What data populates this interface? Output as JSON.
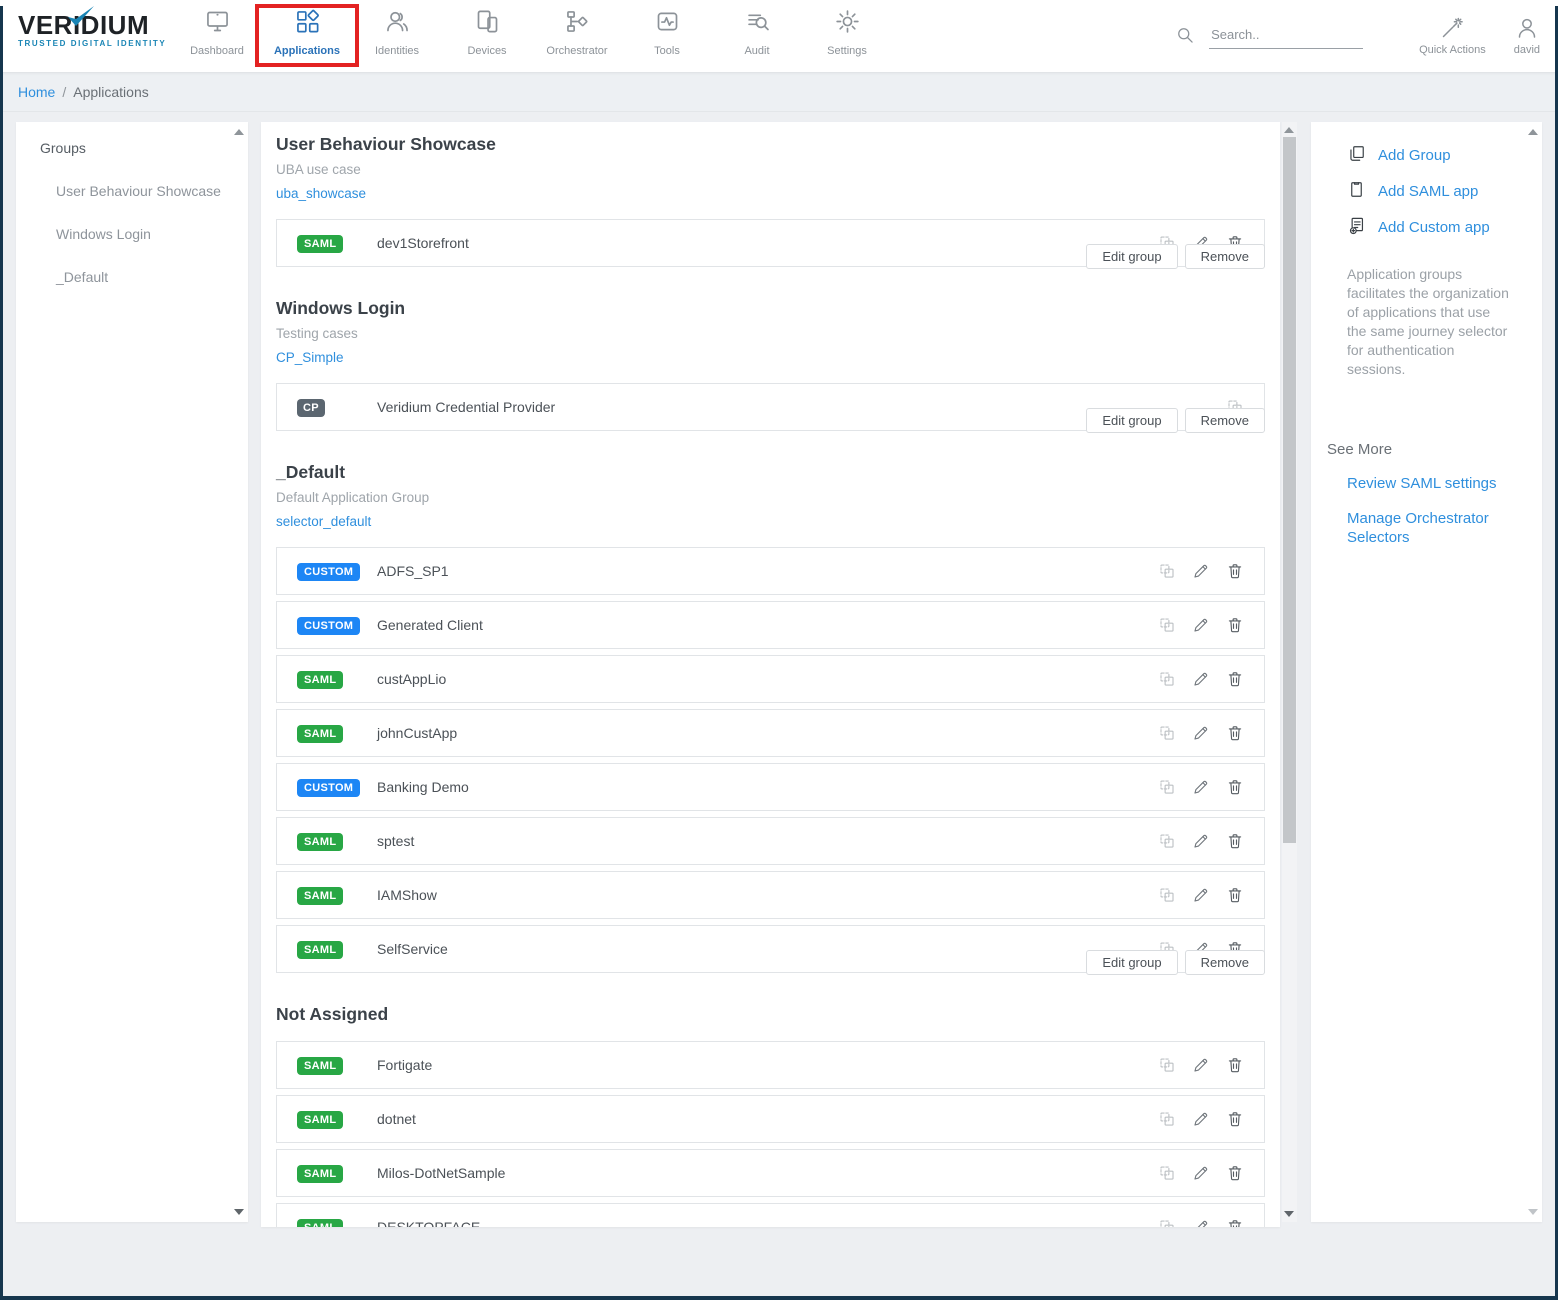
{
  "brand": {
    "name": "VERIDIUM",
    "tagline": "TRUSTED DIGITAL IDENTITY"
  },
  "nav": {
    "active": "Applications",
    "items": [
      {
        "label": "Dashboard",
        "icon": "dashboard-icon"
      },
      {
        "label": "Applications",
        "icon": "applications-icon"
      },
      {
        "label": "Identities",
        "icon": "identities-icon"
      },
      {
        "label": "Devices",
        "icon": "devices-icon"
      },
      {
        "label": "Orchestrator",
        "icon": "orchestrator-icon"
      },
      {
        "label": "Tools",
        "icon": "tools-icon"
      },
      {
        "label": "Audit",
        "icon": "audit-icon"
      },
      {
        "label": "Settings",
        "icon": "settings-icon"
      }
    ]
  },
  "topbar": {
    "search_placeholder": "Search..",
    "quick_actions_label": "Quick Actions",
    "user_label": "david"
  },
  "breadcrumb": {
    "home": "Home",
    "separator": "/",
    "current": "Applications"
  },
  "sidebar": {
    "header": "Groups",
    "items": [
      "User Behaviour Showcase",
      "Windows Login",
      "_Default"
    ]
  },
  "group_buttons": {
    "edit": "Edit group",
    "remove": "Remove"
  },
  "groups": [
    {
      "title": "User Behaviour Showcase",
      "subtitle": "UBA use case",
      "selector": "uba_showcase",
      "apps": [
        {
          "badge": "SAML",
          "type": "saml",
          "name": "dev1Storefront",
          "actions": [
            "clone-icon",
            "edit-icon",
            "delete-icon"
          ]
        }
      ]
    },
    {
      "title": "Windows Login",
      "subtitle": "Testing cases",
      "selector": "CP_Simple",
      "apps": [
        {
          "badge": "CP",
          "type": "cp",
          "name": "Veridium Credential Provider",
          "actions": [
            "clone-icon"
          ]
        }
      ]
    },
    {
      "title": "_Default",
      "subtitle": "Default Application Group",
      "selector": "selector_default",
      "apps": [
        {
          "badge": "CUSTOM",
          "type": "custom",
          "name": "ADFS_SP1",
          "actions": [
            "clone-icon",
            "edit-icon",
            "delete-icon"
          ]
        },
        {
          "badge": "CUSTOM",
          "type": "custom",
          "name": "Generated Client",
          "actions": [
            "clone-icon",
            "edit-icon",
            "delete-icon"
          ]
        },
        {
          "badge": "SAML",
          "type": "saml",
          "name": "custAppLio",
          "actions": [
            "clone-icon",
            "edit-icon",
            "delete-icon"
          ]
        },
        {
          "badge": "SAML",
          "type": "saml",
          "name": "johnCustApp",
          "actions": [
            "clone-icon",
            "edit-icon",
            "delete-icon"
          ]
        },
        {
          "badge": "CUSTOM",
          "type": "custom",
          "name": "Banking Demo",
          "actions": [
            "clone-icon",
            "edit-icon",
            "delete-icon"
          ]
        },
        {
          "badge": "SAML",
          "type": "saml",
          "name": "sptest",
          "actions": [
            "clone-icon",
            "edit-icon",
            "delete-icon"
          ]
        },
        {
          "badge": "SAML",
          "type": "saml",
          "name": "IAMShow",
          "actions": [
            "clone-icon",
            "edit-icon",
            "delete-icon"
          ]
        },
        {
          "badge": "SAML",
          "type": "saml",
          "name": "SelfService",
          "actions": [
            "clone-icon",
            "edit-icon",
            "delete-icon"
          ]
        }
      ]
    }
  ],
  "not_assigned": {
    "title": "Not Assigned",
    "apps": [
      {
        "badge": "SAML",
        "type": "saml",
        "name": "Fortigate",
        "actions": [
          "clone-icon",
          "edit-icon",
          "delete-icon"
        ]
      },
      {
        "badge": "SAML",
        "type": "saml",
        "name": "dotnet",
        "actions": [
          "clone-icon",
          "edit-icon",
          "delete-icon"
        ]
      },
      {
        "badge": "SAML",
        "type": "saml",
        "name": "Milos-DotNetSample",
        "actions": [
          "clone-icon",
          "edit-icon",
          "delete-icon"
        ]
      },
      {
        "badge": "SAML",
        "type": "saml",
        "name": "DESKTOPFACE",
        "actions": [
          "clone-icon",
          "edit-icon",
          "delete-icon"
        ]
      }
    ]
  },
  "actions_panel": {
    "links": [
      {
        "label": "Add Group",
        "icon": "add-group-icon"
      },
      {
        "label": "Add SAML app",
        "icon": "add-saml-app-icon"
      },
      {
        "label": "Add Custom app",
        "icon": "add-custom-app-icon"
      }
    ],
    "description": "Application groups facilitates the organization of applications that use the same journey selector for authentication sessions.",
    "see_more": "See More",
    "see_more_links": [
      "Review SAML settings",
      "Manage Orchestrator Selectors"
    ]
  },
  "colors": {
    "accent_nav_blue": "#2a72b8",
    "link_blue": "#2f8fdd",
    "saml_badge_green": "#28a745",
    "custom_badge_blue": "#1d86f5",
    "cp_badge_gray": "#5b6670",
    "highlight_red": "#e32222",
    "logo_teal": "#1a85b5",
    "window_edge_navy": "#16364e"
  }
}
